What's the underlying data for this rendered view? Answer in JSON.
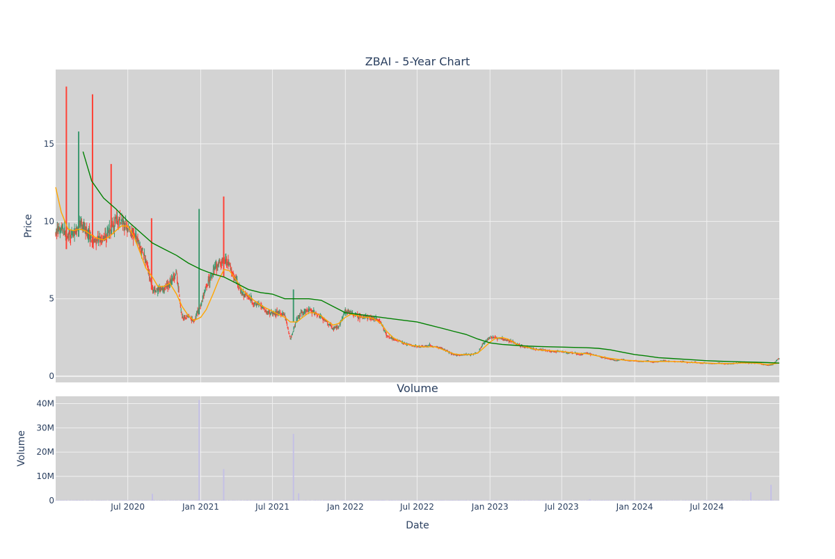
{
  "chart_data": {
    "type": "candlestick",
    "title": "ZBAI - 5-Year Chart",
    "colors": {
      "plot_bg": "#d3d3d3",
      "grid": "#f0f0f0",
      "up": "#3d9970",
      "down": "#ff4136",
      "ma_short": "#ffa500",
      "ma_long": "#008000",
      "volume": "#c4c0e6",
      "text": "#2a3f5f"
    },
    "price_panel": {
      "ylabel": "Price",
      "ylim": [
        -0.4,
        19.8
      ],
      "yticks": [
        0,
        5,
        10,
        15
      ],
      "grid": true
    },
    "volume_panel": {
      "title": "Volume",
      "ylabel": "Volume",
      "ylim": [
        0,
        43
      ],
      "yticks": [
        0,
        10,
        20,
        30,
        40
      ],
      "ytick_labels": [
        "0",
        "10M",
        "20M",
        "30M",
        "40M"
      ],
      "unit": "M"
    },
    "x_axis": {
      "xlabel": "Date",
      "range": [
        "2020-01-01",
        "2024-12-31"
      ],
      "ticks": [
        "2020-07-01",
        "2021-01-01",
        "2021-07-01",
        "2022-01-01",
        "2022-07-01",
        "2023-01-01",
        "2023-07-01",
        "2024-01-01",
        "2024-07-01"
      ],
      "tick_labels": [
        "Jul 2020",
        "Jan 2021",
        "Jul 2021",
        "Jan 2022",
        "Jul 2022",
        "Jan 2023",
        "Jul 2023",
        "Jan 2024",
        "Jul 2024"
      ]
    },
    "price_trend": [
      [
        "2020-01-01",
        9.2
      ],
      [
        "2020-01-15",
        9.6
      ],
      [
        "2020-02-01",
        9.0
      ],
      [
        "2020-02-15",
        9.2
      ],
      [
        "2020-03-01",
        9.8
      ],
      [
        "2020-03-15",
        9.5
      ],
      [
        "2020-04-01",
        8.9
      ],
      [
        "2020-04-15",
        8.7
      ],
      [
        "2020-05-01",
        9.0
      ],
      [
        "2020-05-15",
        9.3
      ],
      [
        "2020-06-01",
        10.2
      ],
      [
        "2020-06-15",
        10.0
      ],
      [
        "2020-07-01",
        9.6
      ],
      [
        "2020-07-15",
        9.3
      ],
      [
        "2020-08-01",
        8.4
      ],
      [
        "2020-08-15",
        7.6
      ],
      [
        "2020-09-01",
        5.6
      ],
      [
        "2020-09-15",
        5.5
      ],
      [
        "2020-10-01",
        5.7
      ],
      [
        "2020-10-15",
        6.0
      ],
      [
        "2020-11-01",
        6.6
      ],
      [
        "2020-11-15",
        3.7
      ],
      [
        "2020-12-01",
        3.9
      ],
      [
        "2020-12-15",
        3.6
      ],
      [
        "2021-01-01",
        4.6
      ],
      [
        "2021-01-15",
        5.8
      ],
      [
        "2021-02-01",
        6.6
      ],
      [
        "2021-02-15",
        7.3
      ],
      [
        "2021-03-01",
        7.6
      ],
      [
        "2021-03-15",
        7.1
      ],
      [
        "2021-04-01",
        6.1
      ],
      [
        "2021-04-15",
        5.4
      ],
      [
        "2021-05-01",
        5.1
      ],
      [
        "2021-05-15",
        4.7
      ],
      [
        "2021-06-01",
        4.6
      ],
      [
        "2021-06-15",
        4.2
      ],
      [
        "2021-07-01",
        4.0
      ],
      [
        "2021-07-15",
        4.1
      ],
      [
        "2021-08-01",
        4.0
      ],
      [
        "2021-08-15",
        2.4
      ],
      [
        "2021-09-01",
        3.7
      ],
      [
        "2021-09-15",
        4.1
      ],
      [
        "2021-10-01",
        4.3
      ],
      [
        "2021-10-15",
        4.1
      ],
      [
        "2021-11-01",
        3.8
      ],
      [
        "2021-11-15",
        3.5
      ],
      [
        "2021-12-01",
        3.1
      ],
      [
        "2021-12-15",
        3.2
      ],
      [
        "2022-01-01",
        4.2
      ],
      [
        "2022-01-15",
        4.1
      ],
      [
        "2022-02-01",
        3.9
      ],
      [
        "2022-02-15",
        3.8
      ],
      [
        "2022-03-01",
        3.8
      ],
      [
        "2022-03-15",
        3.7
      ],
      [
        "2022-04-01",
        3.5
      ],
      [
        "2022-04-15",
        2.6
      ],
      [
        "2022-05-01",
        2.4
      ],
      [
        "2022-05-15",
        2.3
      ],
      [
        "2022-06-01",
        2.1
      ],
      [
        "2022-06-15",
        2.0
      ],
      [
        "2022-07-01",
        1.9
      ],
      [
        "2022-07-15",
        1.9
      ],
      [
        "2022-08-01",
        2.0
      ],
      [
        "2022-08-15",
        1.9
      ],
      [
        "2022-09-01",
        1.8
      ],
      [
        "2022-09-15",
        1.6
      ],
      [
        "2022-10-01",
        1.4
      ],
      [
        "2022-10-15",
        1.35
      ],
      [
        "2022-11-01",
        1.4
      ],
      [
        "2022-11-15",
        1.4
      ],
      [
        "2022-12-01",
        1.5
      ],
      [
        "2022-12-15",
        2.1
      ],
      [
        "2023-01-01",
        2.5
      ],
      [
        "2023-01-15",
        2.5
      ],
      [
        "2023-02-01",
        2.4
      ],
      [
        "2023-02-15",
        2.3
      ],
      [
        "2023-03-01",
        2.2
      ],
      [
        "2023-03-15",
        2.0
      ],
      [
        "2023-04-01",
        1.9
      ],
      [
        "2023-04-15",
        1.8
      ],
      [
        "2023-05-01",
        1.7
      ],
      [
        "2023-05-15",
        1.7
      ],
      [
        "2023-06-01",
        1.6
      ],
      [
        "2023-06-15",
        1.6
      ],
      [
        "2023-07-01",
        1.6
      ],
      [
        "2023-07-15",
        1.5
      ],
      [
        "2023-08-01",
        1.5
      ],
      [
        "2023-08-15",
        1.4
      ],
      [
        "2023-09-01",
        1.5
      ],
      [
        "2023-09-15",
        1.4
      ],
      [
        "2023-10-01",
        1.3
      ],
      [
        "2023-10-15",
        1.2
      ],
      [
        "2023-11-01",
        1.1
      ],
      [
        "2023-11-15",
        1.0
      ],
      [
        "2023-12-01",
        1.1
      ],
      [
        "2023-12-15",
        1.0
      ],
      [
        "2024-01-01",
        1.0
      ],
      [
        "2024-01-15",
        0.95
      ],
      [
        "2024-02-01",
        1.0
      ],
      [
        "2024-02-15",
        0.9
      ],
      [
        "2024-03-01",
        0.95
      ],
      [
        "2024-03-15",
        1.0
      ],
      [
        "2024-04-01",
        0.95
      ],
      [
        "2024-04-15",
        0.95
      ],
      [
        "2024-05-01",
        0.95
      ],
      [
        "2024-05-15",
        0.9
      ],
      [
        "2024-06-01",
        0.9
      ],
      [
        "2024-06-15",
        0.85
      ],
      [
        "2024-07-01",
        0.85
      ],
      [
        "2024-07-15",
        0.8
      ],
      [
        "2024-08-01",
        0.85
      ],
      [
        "2024-08-15",
        0.8
      ],
      [
        "2024-09-01",
        0.8
      ],
      [
        "2024-09-15",
        0.85
      ],
      [
        "2024-10-01",
        0.9
      ],
      [
        "2024-10-15",
        0.85
      ],
      [
        "2024-11-01",
        0.85
      ],
      [
        "2024-11-15",
        0.8
      ],
      [
        "2024-12-01",
        0.7
      ],
      [
        "2024-12-15",
        0.75
      ],
      [
        "2024-12-31",
        1.2
      ]
    ],
    "price_spikes": [
      {
        "date": "2020-01-28",
        "high": 18.7,
        "low": 8.2,
        "direction": "down"
      },
      {
        "date": "2020-02-28",
        "high": 15.8,
        "low": 9.0,
        "direction": "up"
      },
      {
        "date": "2020-04-03",
        "high": 18.2,
        "low": 8.3,
        "direction": "down"
      },
      {
        "date": "2020-05-20",
        "high": 13.7,
        "low": 9.6,
        "direction": "down"
      },
      {
        "date": "2020-08-30",
        "high": 10.2,
        "low": 5.6,
        "direction": "down"
      },
      {
        "date": "2020-12-28",
        "high": 10.8,
        "low": 4.0,
        "direction": "up"
      },
      {
        "date": "2021-02-28",
        "high": 11.6,
        "low": 6.4,
        "direction": "down"
      },
      {
        "date": "2021-08-23",
        "high": 5.6,
        "low": 3.5,
        "direction": "up"
      }
    ],
    "ma_short": [
      [
        "2020-01-01",
        12.2
      ],
      [
        "2020-01-15",
        10.6
      ],
      [
        "2020-02-01",
        9.5
      ],
      [
        "2020-02-15",
        9.4
      ],
      [
        "2020-03-01",
        9.5
      ],
      [
        "2020-03-15",
        9.4
      ],
      [
        "2020-04-01",
        9.1
      ],
      [
        "2020-04-15",
        8.9
      ],
      [
        "2020-05-01",
        8.8
      ],
      [
        "2020-05-15",
        9.0
      ],
      [
        "2020-06-01",
        9.4
      ],
      [
        "2020-06-15",
        9.7
      ],
      [
        "2020-07-01",
        9.7
      ],
      [
        "2020-07-15",
        9.1
      ],
      [
        "2020-08-01",
        8.0
      ],
      [
        "2020-08-15",
        7.0
      ],
      [
        "2020-09-01",
        6.4
      ],
      [
        "2020-09-15",
        5.8
      ],
      [
        "2020-10-01",
        5.8
      ],
      [
        "2020-10-15",
        6.0
      ],
      [
        "2020-11-01",
        5.3
      ],
      [
        "2020-11-15",
        4.5
      ],
      [
        "2020-12-01",
        3.9
      ],
      [
        "2020-12-15",
        3.6
      ],
      [
        "2021-01-01",
        3.8
      ],
      [
        "2021-01-15",
        4.3
      ],
      [
        "2021-02-01",
        5.3
      ],
      [
        "2021-02-15",
        6.2
      ],
      [
        "2021-03-01",
        6.9
      ],
      [
        "2021-03-15",
        6.8
      ],
      [
        "2021-04-01",
        6.2
      ],
      [
        "2021-04-15",
        5.6
      ],
      [
        "2021-05-01",
        5.2
      ],
      [
        "2021-05-15",
        4.9
      ],
      [
        "2021-06-01",
        4.6
      ],
      [
        "2021-06-15",
        4.4
      ],
      [
        "2021-07-01",
        4.2
      ],
      [
        "2021-07-15",
        4.0
      ],
      [
        "2021-08-01",
        3.8
      ],
      [
        "2021-08-15",
        3.5
      ],
      [
        "2021-09-01",
        3.5
      ],
      [
        "2021-09-15",
        3.8
      ],
      [
        "2021-10-01",
        4.1
      ],
      [
        "2021-10-15",
        4.1
      ],
      [
        "2021-11-01",
        3.9
      ],
      [
        "2021-11-15",
        3.6
      ],
      [
        "2021-12-01",
        3.3
      ],
      [
        "2021-12-15",
        3.4
      ],
      [
        "2022-01-01",
        3.8
      ],
      [
        "2022-01-15",
        4.0
      ],
      [
        "2022-02-01",
        3.9
      ],
      [
        "2022-02-15",
        3.8
      ],
      [
        "2022-03-01",
        3.8
      ],
      [
        "2022-03-15",
        3.7
      ],
      [
        "2022-04-01",
        3.4
      ],
      [
        "2022-04-15",
        2.9
      ],
      [
        "2022-05-01",
        2.5
      ],
      [
        "2022-05-15",
        2.3
      ],
      [
        "2022-06-01",
        2.1
      ],
      [
        "2022-06-15",
        2.0
      ],
      [
        "2022-07-01",
        1.95
      ],
      [
        "2022-07-15",
        1.9
      ],
      [
        "2022-08-01",
        1.9
      ],
      [
        "2022-08-15",
        1.9
      ],
      [
        "2022-09-01",
        1.75
      ],
      [
        "2022-09-15",
        1.6
      ],
      [
        "2022-10-01",
        1.45
      ],
      [
        "2022-10-15",
        1.4
      ],
      [
        "2022-11-01",
        1.4
      ],
      [
        "2022-11-15",
        1.4
      ],
      [
        "2022-12-01",
        1.5
      ],
      [
        "2022-12-15",
        1.8
      ],
      [
        "2023-01-01",
        2.2
      ],
      [
        "2023-01-15",
        2.45
      ],
      [
        "2023-02-01",
        2.5
      ],
      [
        "2023-02-15",
        2.4
      ],
      [
        "2023-03-01",
        2.2
      ],
      [
        "2023-03-15",
        2.0
      ],
      [
        "2023-04-01",
        1.9
      ],
      [
        "2023-04-15",
        1.8
      ],
      [
        "2023-05-01",
        1.7
      ],
      [
        "2023-06-01",
        1.65
      ],
      [
        "2023-07-01",
        1.6
      ],
      [
        "2023-08-01",
        1.5
      ],
      [
        "2023-09-01",
        1.45
      ],
      [
        "2023-10-01",
        1.3
      ],
      [
        "2023-11-01",
        1.15
      ],
      [
        "2023-12-01",
        1.05
      ],
      [
        "2024-01-01",
        1.0
      ],
      [
        "2024-02-01",
        0.95
      ],
      [
        "2024-03-01",
        0.95
      ],
      [
        "2024-04-01",
        0.95
      ],
      [
        "2024-05-01",
        0.92
      ],
      [
        "2024-06-01",
        0.88
      ],
      [
        "2024-07-01",
        0.85
      ],
      [
        "2024-08-01",
        0.82
      ],
      [
        "2024-09-01",
        0.82
      ],
      [
        "2024-10-01",
        0.86
      ],
      [
        "2024-11-01",
        0.85
      ],
      [
        "2024-12-01",
        0.75
      ],
      [
        "2024-12-31",
        0.85
      ]
    ],
    "ma_long": [
      [
        "2020-03-10",
        14.5
      ],
      [
        "2020-04-01",
        12.6
      ],
      [
        "2020-05-01",
        11.5
      ],
      [
        "2020-06-01",
        10.8
      ],
      [
        "2020-07-01",
        10.0
      ],
      [
        "2020-08-01",
        9.3
      ],
      [
        "2020-09-01",
        8.6
      ],
      [
        "2020-10-01",
        8.2
      ],
      [
        "2020-11-01",
        7.8
      ],
      [
        "2020-12-01",
        7.3
      ],
      [
        "2021-01-01",
        6.9
      ],
      [
        "2021-02-01",
        6.6
      ],
      [
        "2021-03-01",
        6.4
      ],
      [
        "2021-04-01",
        6.0
      ],
      [
        "2021-05-01",
        5.6
      ],
      [
        "2021-06-01",
        5.4
      ],
      [
        "2021-07-01",
        5.3
      ],
      [
        "2021-08-01",
        5.0
      ],
      [
        "2021-09-01",
        5.0
      ],
      [
        "2021-10-01",
        5.0
      ],
      [
        "2021-11-01",
        4.9
      ],
      [
        "2021-12-01",
        4.5
      ],
      [
        "2022-01-01",
        4.1
      ],
      [
        "2022-02-01",
        4.0
      ],
      [
        "2022-03-01",
        3.9
      ],
      [
        "2022-04-01",
        3.8
      ],
      [
        "2022-05-01",
        3.7
      ],
      [
        "2022-06-01",
        3.6
      ],
      [
        "2022-07-01",
        3.5
      ],
      [
        "2022-08-01",
        3.3
      ],
      [
        "2022-09-01",
        3.1
      ],
      [
        "2022-10-01",
        2.9
      ],
      [
        "2022-11-01",
        2.7
      ],
      [
        "2022-12-01",
        2.4
      ],
      [
        "2023-01-01",
        2.15
      ],
      [
        "2023-02-01",
        2.05
      ],
      [
        "2023-03-01",
        2.0
      ],
      [
        "2023-04-01",
        1.95
      ],
      [
        "2023-05-01",
        1.92
      ],
      [
        "2023-06-01",
        1.9
      ],
      [
        "2023-07-01",
        1.88
      ],
      [
        "2023-08-01",
        1.86
      ],
      [
        "2023-09-01",
        1.84
      ],
      [
        "2023-10-01",
        1.8
      ],
      [
        "2023-11-01",
        1.7
      ],
      [
        "2023-12-01",
        1.55
      ],
      [
        "2024-01-01",
        1.4
      ],
      [
        "2024-02-01",
        1.3
      ],
      [
        "2024-03-01",
        1.2
      ],
      [
        "2024-04-01",
        1.15
      ],
      [
        "2024-05-01",
        1.1
      ],
      [
        "2024-06-01",
        1.05
      ],
      [
        "2024-07-01",
        1.0
      ],
      [
        "2024-08-01",
        0.97
      ],
      [
        "2024-09-01",
        0.94
      ],
      [
        "2024-10-01",
        0.92
      ],
      [
        "2024-11-01",
        0.9
      ],
      [
        "2024-12-01",
        0.88
      ],
      [
        "2024-12-31",
        0.85
      ]
    ],
    "volume_spikes": [
      [
        "2020-09-01",
        2.8
      ],
      [
        "2020-12-28",
        41.5
      ],
      [
        "2021-02-28",
        13.0
      ],
      [
        "2021-08-23",
        27.5
      ],
      [
        "2021-09-05",
        3.0
      ],
      [
        "2023-09-10",
        0.6
      ],
      [
        "2024-10-20",
        3.5
      ],
      [
        "2024-12-10",
        6.5
      ]
    ]
  }
}
